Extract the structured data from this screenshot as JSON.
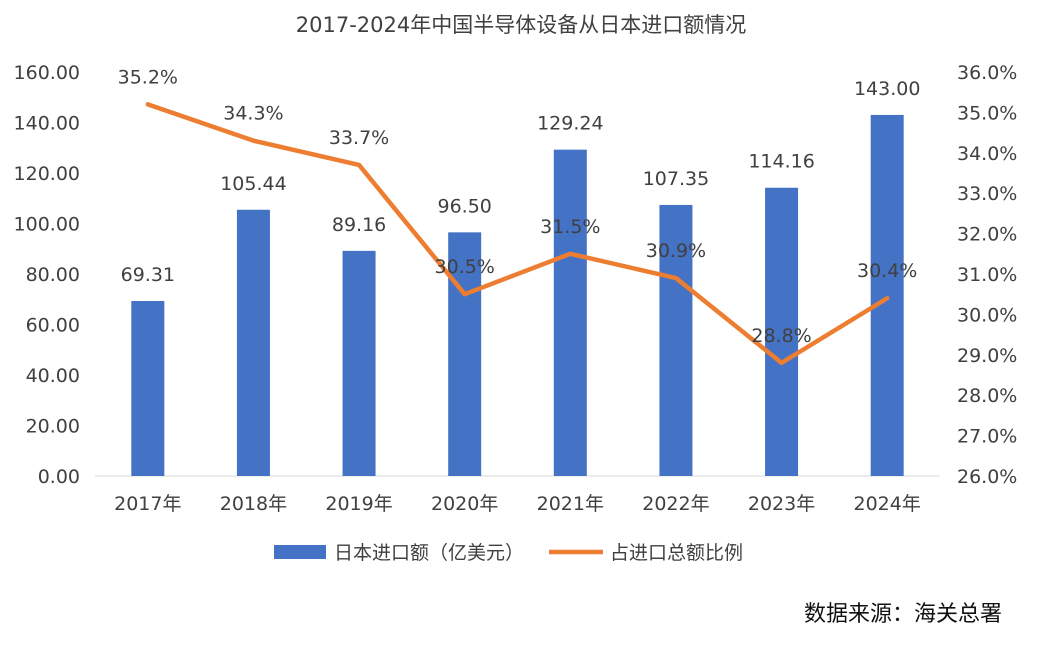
{
  "chart_data": {
    "type": "bar",
    "title": "2017-2024年中国半导体设备从日本进口额情况",
    "categories": [
      "2017年",
      "2018年",
      "2019年",
      "2020年",
      "2021年",
      "2022年",
      "2023年",
      "2024年"
    ],
    "series": [
      {
        "name": "日本进口额（亿美元）",
        "type": "bar",
        "axis": "left",
        "color": "#4472C4",
        "values": [
          69.31,
          105.44,
          89.16,
          96.5,
          129.24,
          107.35,
          114.16,
          143.0
        ],
        "labels": [
          "69.31",
          "105.44",
          "89.16",
          "96.50",
          "129.24",
          "107.35",
          "114.16",
          "143.00"
        ]
      },
      {
        "name": "占进口总额比例",
        "type": "line",
        "axis": "right",
        "color": "#ED7D31",
        "values": [
          35.2,
          34.3,
          33.7,
          30.5,
          31.5,
          30.9,
          28.8,
          30.4
        ],
        "labels": [
          "35.2%",
          "34.3%",
          "33.7%",
          "30.5%",
          "31.5%",
          "30.9%",
          "28.8%",
          "30.4%"
        ]
      }
    ],
    "y_left": {
      "min": 0,
      "max": 160,
      "ticks": [
        "0.00",
        "20.00",
        "40.00",
        "60.00",
        "80.00",
        "100.00",
        "120.00",
        "140.00",
        "160.00"
      ]
    },
    "y_right": {
      "min": 26,
      "max": 36,
      "ticks": [
        "26.0%",
        "27.0%",
        "28.0%",
        "29.0%",
        "30.0%",
        "31.0%",
        "32.0%",
        "33.0%",
        "34.0%",
        "35.0%",
        "36.0%"
      ]
    },
    "grid": false,
    "legend_position": "bottom"
  },
  "source_text": "数据来源：海关总署"
}
